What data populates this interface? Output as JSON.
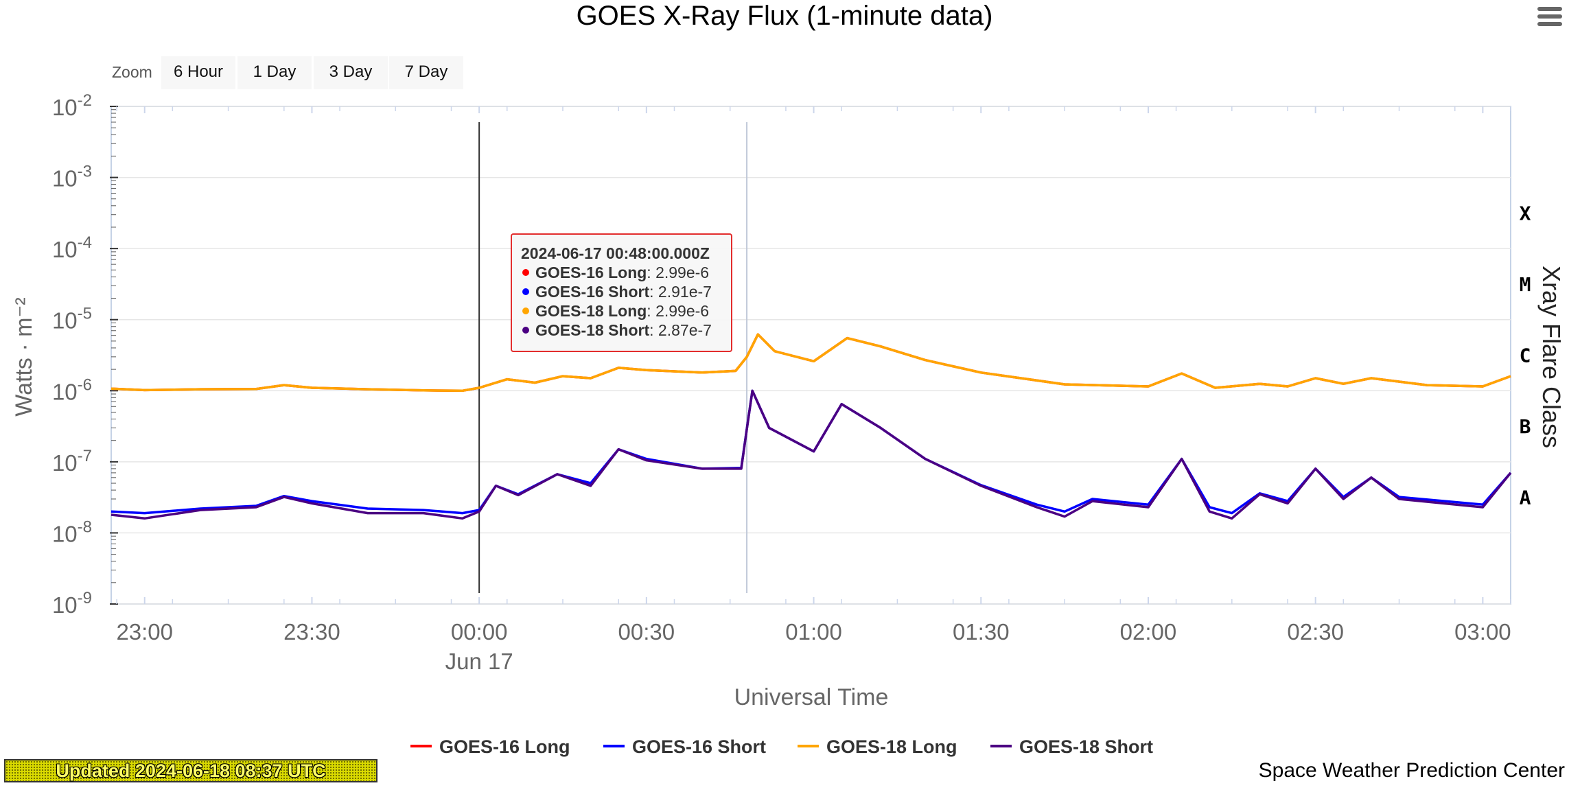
{
  "chart_data": {
    "type": "line",
    "title": "GOES X-Ray Flux (1-minute data)",
    "xlabel": "Universal Time",
    "ylabel": "Watts · m⁻²",
    "y2label": "Xray Flare Class",
    "yscale": "log",
    "ylim": [
      1e-09,
      0.01
    ],
    "xlim": [
      "2024-06-16 22:54",
      "2024-06-17 03:05"
    ],
    "x_ticks": [
      {
        "time": "2024-06-16 23:00",
        "label": "23:00"
      },
      {
        "time": "2024-06-16 23:30",
        "label": "23:30"
      },
      {
        "time": "2024-06-17 00:00",
        "label": "00:00",
        "sublabel": "Jun 17"
      },
      {
        "time": "2024-06-17 00:30",
        "label": "00:30"
      },
      {
        "time": "2024-06-17 01:00",
        "label": "01:00"
      },
      {
        "time": "2024-06-17 01:30",
        "label": "01:30"
      },
      {
        "time": "2024-06-17 02:00",
        "label": "02:00"
      },
      {
        "time": "2024-06-17 02:30",
        "label": "02:30"
      },
      {
        "time": "2024-06-17 03:00",
        "label": "03:00"
      }
    ],
    "y_ticks": [
      {
        "base": "10",
        "exp": "-2",
        "value": 0.01
      },
      {
        "base": "10",
        "exp": "-3",
        "value": 0.001
      },
      {
        "base": "10",
        "exp": "-4",
        "value": 0.0001
      },
      {
        "base": "10",
        "exp": "-5",
        "value": 1e-05
      },
      {
        "base": "10",
        "exp": "-6",
        "value": 1e-06
      },
      {
        "base": "10",
        "exp": "-7",
        "value": 1e-07
      },
      {
        "base": "10",
        "exp": "-8",
        "value": 1e-08
      },
      {
        "base": "10",
        "exp": "-9",
        "value": 1e-09
      }
    ],
    "flare_classes": [
      {
        "label": "X",
        "value": 0.000316
      },
      {
        "label": "M",
        "value": 3.16e-05
      },
      {
        "label": "C",
        "value": 3.16e-06
      },
      {
        "label": "B",
        "value": 3.16e-07
      },
      {
        "label": "A",
        "value": 3.16e-08
      }
    ],
    "grid": true,
    "legend_position": "bottom-center",
    "markers": [
      {
        "time": "2024-06-17 00:00",
        "color": "#333333"
      },
      {
        "time": "2024-06-17 00:48",
        "color": "#c0c8d8"
      }
    ],
    "tooltip": {
      "header": "2024-06-17 00:48:00.000Z",
      "rows": [
        {
          "name": "GOES-16 Long",
          "value": ": 2.99e-6",
          "color": "#ff0000"
        },
        {
          "name": "GOES-16 Short",
          "value": ": 2.91e-7",
          "color": "#0000ff"
        },
        {
          "name": "GOES-18 Long",
          "value": ": 2.99e-6",
          "color": "#ffa500"
        },
        {
          "name": "GOES-18 Short",
          "value": ": 2.87e-7",
          "color": "#4b0082"
        }
      ]
    },
    "series": [
      {
        "name": "GOES-16 Long",
        "color": "#ff0000",
        "points": [
          [
            "2024-06-16 22:54",
            1.07e-06
          ],
          [
            "2024-06-16 23:00",
            1.02e-06
          ],
          [
            "2024-06-16 23:10",
            1.05e-06
          ],
          [
            "2024-06-16 23:20",
            1.06e-06
          ],
          [
            "2024-06-16 23:25",
            1.2e-06
          ],
          [
            "2024-06-16 23:30",
            1.1e-06
          ],
          [
            "2024-06-16 23:40",
            1.05e-06
          ],
          [
            "2024-06-16 23:50",
            1.01e-06
          ],
          [
            "2024-06-16 23:57",
            1e-06
          ],
          [
            "2024-06-17 00:00",
            1.1e-06
          ],
          [
            "2024-06-17 00:05",
            1.45e-06
          ],
          [
            "2024-06-17 00:10",
            1.3e-06
          ],
          [
            "2024-06-17 00:15",
            1.6e-06
          ],
          [
            "2024-06-17 00:20",
            1.5e-06
          ],
          [
            "2024-06-17 00:25",
            2.1e-06
          ],
          [
            "2024-06-17 00:30",
            1.95e-06
          ],
          [
            "2024-06-17 00:40",
            1.8e-06
          ],
          [
            "2024-06-17 00:46",
            1.9e-06
          ],
          [
            "2024-06-17 00:48",
            2.99e-06
          ],
          [
            "2024-06-17 00:50",
            6.2e-06
          ],
          [
            "2024-06-17 00:53",
            3.6e-06
          ],
          [
            "2024-06-17 01:00",
            2.6e-06
          ],
          [
            "2024-06-17 01:06",
            5.5e-06
          ],
          [
            "2024-06-17 01:12",
            4.2e-06
          ],
          [
            "2024-06-17 01:20",
            2.7e-06
          ],
          [
            "2024-06-17 01:30",
            1.8e-06
          ],
          [
            "2024-06-17 01:45",
            1.23e-06
          ],
          [
            "2024-06-17 02:00",
            1.15e-06
          ],
          [
            "2024-06-17 02:06",
            1.75e-06
          ],
          [
            "2024-06-17 02:12",
            1.1e-06
          ],
          [
            "2024-06-17 02:20",
            1.25e-06
          ],
          [
            "2024-06-17 02:25",
            1.15e-06
          ],
          [
            "2024-06-17 02:30",
            1.5e-06
          ],
          [
            "2024-06-17 02:35",
            1.25e-06
          ],
          [
            "2024-06-17 02:40",
            1.5e-06
          ],
          [
            "2024-06-17 02:50",
            1.2e-06
          ],
          [
            "2024-06-17 03:00",
            1.15e-06
          ],
          [
            "2024-06-17 03:05",
            1.6e-06
          ]
        ]
      },
      {
        "name": "GOES-16 Short",
        "color": "#0000ff",
        "points": [
          [
            "2024-06-16 22:54",
            2e-08
          ],
          [
            "2024-06-16 23:00",
            1.9e-08
          ],
          [
            "2024-06-16 23:10",
            2.2e-08
          ],
          [
            "2024-06-16 23:20",
            2.4e-08
          ],
          [
            "2024-06-16 23:25",
            3.3e-08
          ],
          [
            "2024-06-16 23:30",
            2.8e-08
          ],
          [
            "2024-06-16 23:40",
            2.2e-08
          ],
          [
            "2024-06-16 23:50",
            2.1e-08
          ],
          [
            "2024-06-16 23:57",
            1.9e-08
          ],
          [
            "2024-06-17 00:00",
            2.1e-08
          ],
          [
            "2024-06-17 00:03",
            4.6e-08
          ],
          [
            "2024-06-17 00:07",
            3.5e-08
          ],
          [
            "2024-06-17 00:14",
            6.7e-08
          ],
          [
            "2024-06-17 00:20",
            5e-08
          ],
          [
            "2024-06-17 00:25",
            1.5e-07
          ],
          [
            "2024-06-17 00:30",
            1.1e-07
          ],
          [
            "2024-06-17 00:40",
            8e-08
          ],
          [
            "2024-06-17 00:47",
            8.2e-08
          ],
          [
            "2024-06-17 00:48",
            2.91e-07
          ],
          [
            "2024-06-17 00:49",
            1e-06
          ],
          [
            "2024-06-17 00:52",
            3e-07
          ],
          [
            "2024-06-17 01:00",
            1.4e-07
          ],
          [
            "2024-06-17 01:05",
            6.5e-07
          ],
          [
            "2024-06-17 01:12",
            3e-07
          ],
          [
            "2024-06-17 01:20",
            1.1e-07
          ],
          [
            "2024-06-17 01:30",
            4.7e-08
          ],
          [
            "2024-06-17 01:40",
            2.5e-08
          ],
          [
            "2024-06-17 01:45",
            2e-08
          ],
          [
            "2024-06-17 01:50",
            3e-08
          ],
          [
            "2024-06-17 02:00",
            2.5e-08
          ],
          [
            "2024-06-17 02:06",
            1.1e-07
          ],
          [
            "2024-06-17 02:11",
            2.3e-08
          ],
          [
            "2024-06-17 02:15",
            1.9e-08
          ],
          [
            "2024-06-17 02:20",
            3.6e-08
          ],
          [
            "2024-06-17 02:25",
            2.8e-08
          ],
          [
            "2024-06-17 02:30",
            8e-08
          ],
          [
            "2024-06-17 02:35",
            3.2e-08
          ],
          [
            "2024-06-17 02:40",
            6e-08
          ],
          [
            "2024-06-17 02:45",
            3.2e-08
          ],
          [
            "2024-06-17 03:00",
            2.5e-08
          ],
          [
            "2024-06-17 03:05",
            7e-08
          ]
        ]
      },
      {
        "name": "GOES-18 Long",
        "color": "#ffa500",
        "points": [
          [
            "2024-06-16 22:54",
            1.07e-06
          ],
          [
            "2024-06-16 23:00",
            1.02e-06
          ],
          [
            "2024-06-16 23:10",
            1.05e-06
          ],
          [
            "2024-06-16 23:20",
            1.06e-06
          ],
          [
            "2024-06-16 23:25",
            1.2e-06
          ],
          [
            "2024-06-16 23:30",
            1.1e-06
          ],
          [
            "2024-06-16 23:40",
            1.05e-06
          ],
          [
            "2024-06-16 23:50",
            1.01e-06
          ],
          [
            "2024-06-16 23:57",
            1e-06
          ],
          [
            "2024-06-17 00:00",
            1.1e-06
          ],
          [
            "2024-06-17 00:05",
            1.45e-06
          ],
          [
            "2024-06-17 00:10",
            1.3e-06
          ],
          [
            "2024-06-17 00:15",
            1.6e-06
          ],
          [
            "2024-06-17 00:20",
            1.5e-06
          ],
          [
            "2024-06-17 00:25",
            2.1e-06
          ],
          [
            "2024-06-17 00:30",
            1.95e-06
          ],
          [
            "2024-06-17 00:40",
            1.8e-06
          ],
          [
            "2024-06-17 00:46",
            1.9e-06
          ],
          [
            "2024-06-17 00:48",
            2.99e-06
          ],
          [
            "2024-06-17 00:50",
            6.2e-06
          ],
          [
            "2024-06-17 00:53",
            3.6e-06
          ],
          [
            "2024-06-17 01:00",
            2.6e-06
          ],
          [
            "2024-06-17 01:06",
            5.5e-06
          ],
          [
            "2024-06-17 01:12",
            4.2e-06
          ],
          [
            "2024-06-17 01:20",
            2.7e-06
          ],
          [
            "2024-06-17 01:30",
            1.8e-06
          ],
          [
            "2024-06-17 01:45",
            1.23e-06
          ],
          [
            "2024-06-17 02:00",
            1.15e-06
          ],
          [
            "2024-06-17 02:06",
            1.75e-06
          ],
          [
            "2024-06-17 02:12",
            1.1e-06
          ],
          [
            "2024-06-17 02:20",
            1.25e-06
          ],
          [
            "2024-06-17 02:25",
            1.15e-06
          ],
          [
            "2024-06-17 02:30",
            1.5e-06
          ],
          [
            "2024-06-17 02:35",
            1.25e-06
          ],
          [
            "2024-06-17 02:40",
            1.5e-06
          ],
          [
            "2024-06-17 02:50",
            1.2e-06
          ],
          [
            "2024-06-17 03:00",
            1.15e-06
          ],
          [
            "2024-06-17 03:05",
            1.6e-06
          ]
        ]
      },
      {
        "name": "GOES-18 Short",
        "color": "#4b0082",
        "points": [
          [
            "2024-06-16 22:54",
            1.8e-08
          ],
          [
            "2024-06-16 23:00",
            1.6e-08
          ],
          [
            "2024-06-16 23:10",
            2.1e-08
          ],
          [
            "2024-06-16 23:20",
            2.3e-08
          ],
          [
            "2024-06-16 23:25",
            3.2e-08
          ],
          [
            "2024-06-16 23:30",
            2.6e-08
          ],
          [
            "2024-06-16 23:40",
            1.9e-08
          ],
          [
            "2024-06-16 23:50",
            1.9e-08
          ],
          [
            "2024-06-16 23:57",
            1.6e-08
          ],
          [
            "2024-06-17 00:00",
            2e-08
          ],
          [
            "2024-06-17 00:03",
            4.6e-08
          ],
          [
            "2024-06-17 00:07",
            3.4e-08
          ],
          [
            "2024-06-17 00:14",
            6.7e-08
          ],
          [
            "2024-06-17 00:20",
            4.6e-08
          ],
          [
            "2024-06-17 00:25",
            1.5e-07
          ],
          [
            "2024-06-17 00:30",
            1.05e-07
          ],
          [
            "2024-06-17 00:40",
            8e-08
          ],
          [
            "2024-06-17 00:47",
            8e-08
          ],
          [
            "2024-06-17 00:48",
            2.87e-07
          ],
          [
            "2024-06-17 00:49",
            1e-06
          ],
          [
            "2024-06-17 00:52",
            3e-07
          ],
          [
            "2024-06-17 01:00",
            1.4e-07
          ],
          [
            "2024-06-17 01:05",
            6.5e-07
          ],
          [
            "2024-06-17 01:12",
            3e-07
          ],
          [
            "2024-06-17 01:20",
            1.1e-07
          ],
          [
            "2024-06-17 01:30",
            4.6e-08
          ],
          [
            "2024-06-17 01:40",
            2.3e-08
          ],
          [
            "2024-06-17 01:45",
            1.7e-08
          ],
          [
            "2024-06-17 01:50",
            2.8e-08
          ],
          [
            "2024-06-17 02:00",
            2.3e-08
          ],
          [
            "2024-06-17 02:06",
            1.1e-07
          ],
          [
            "2024-06-17 02:11",
            2e-08
          ],
          [
            "2024-06-17 02:15",
            1.6e-08
          ],
          [
            "2024-06-17 02:20",
            3.5e-08
          ],
          [
            "2024-06-17 02:25",
            2.6e-08
          ],
          [
            "2024-06-17 02:30",
            8e-08
          ],
          [
            "2024-06-17 02:35",
            3e-08
          ],
          [
            "2024-06-17 02:40",
            6e-08
          ],
          [
            "2024-06-17 02:45",
            3e-08
          ],
          [
            "2024-06-17 03:00",
            2.3e-08
          ],
          [
            "2024-06-17 03:05",
            7e-08
          ]
        ]
      }
    ]
  },
  "zoom": {
    "label": "Zoom",
    "buttons": [
      "6 Hour",
      "1 Day",
      "3 Day",
      "7 Day"
    ]
  },
  "footer": {
    "updated": "Updated 2024-06-18 08:37 UTC",
    "credit": "Space Weather Prediction Center"
  },
  "menu": {
    "icon": "hamburger-menu-icon"
  }
}
